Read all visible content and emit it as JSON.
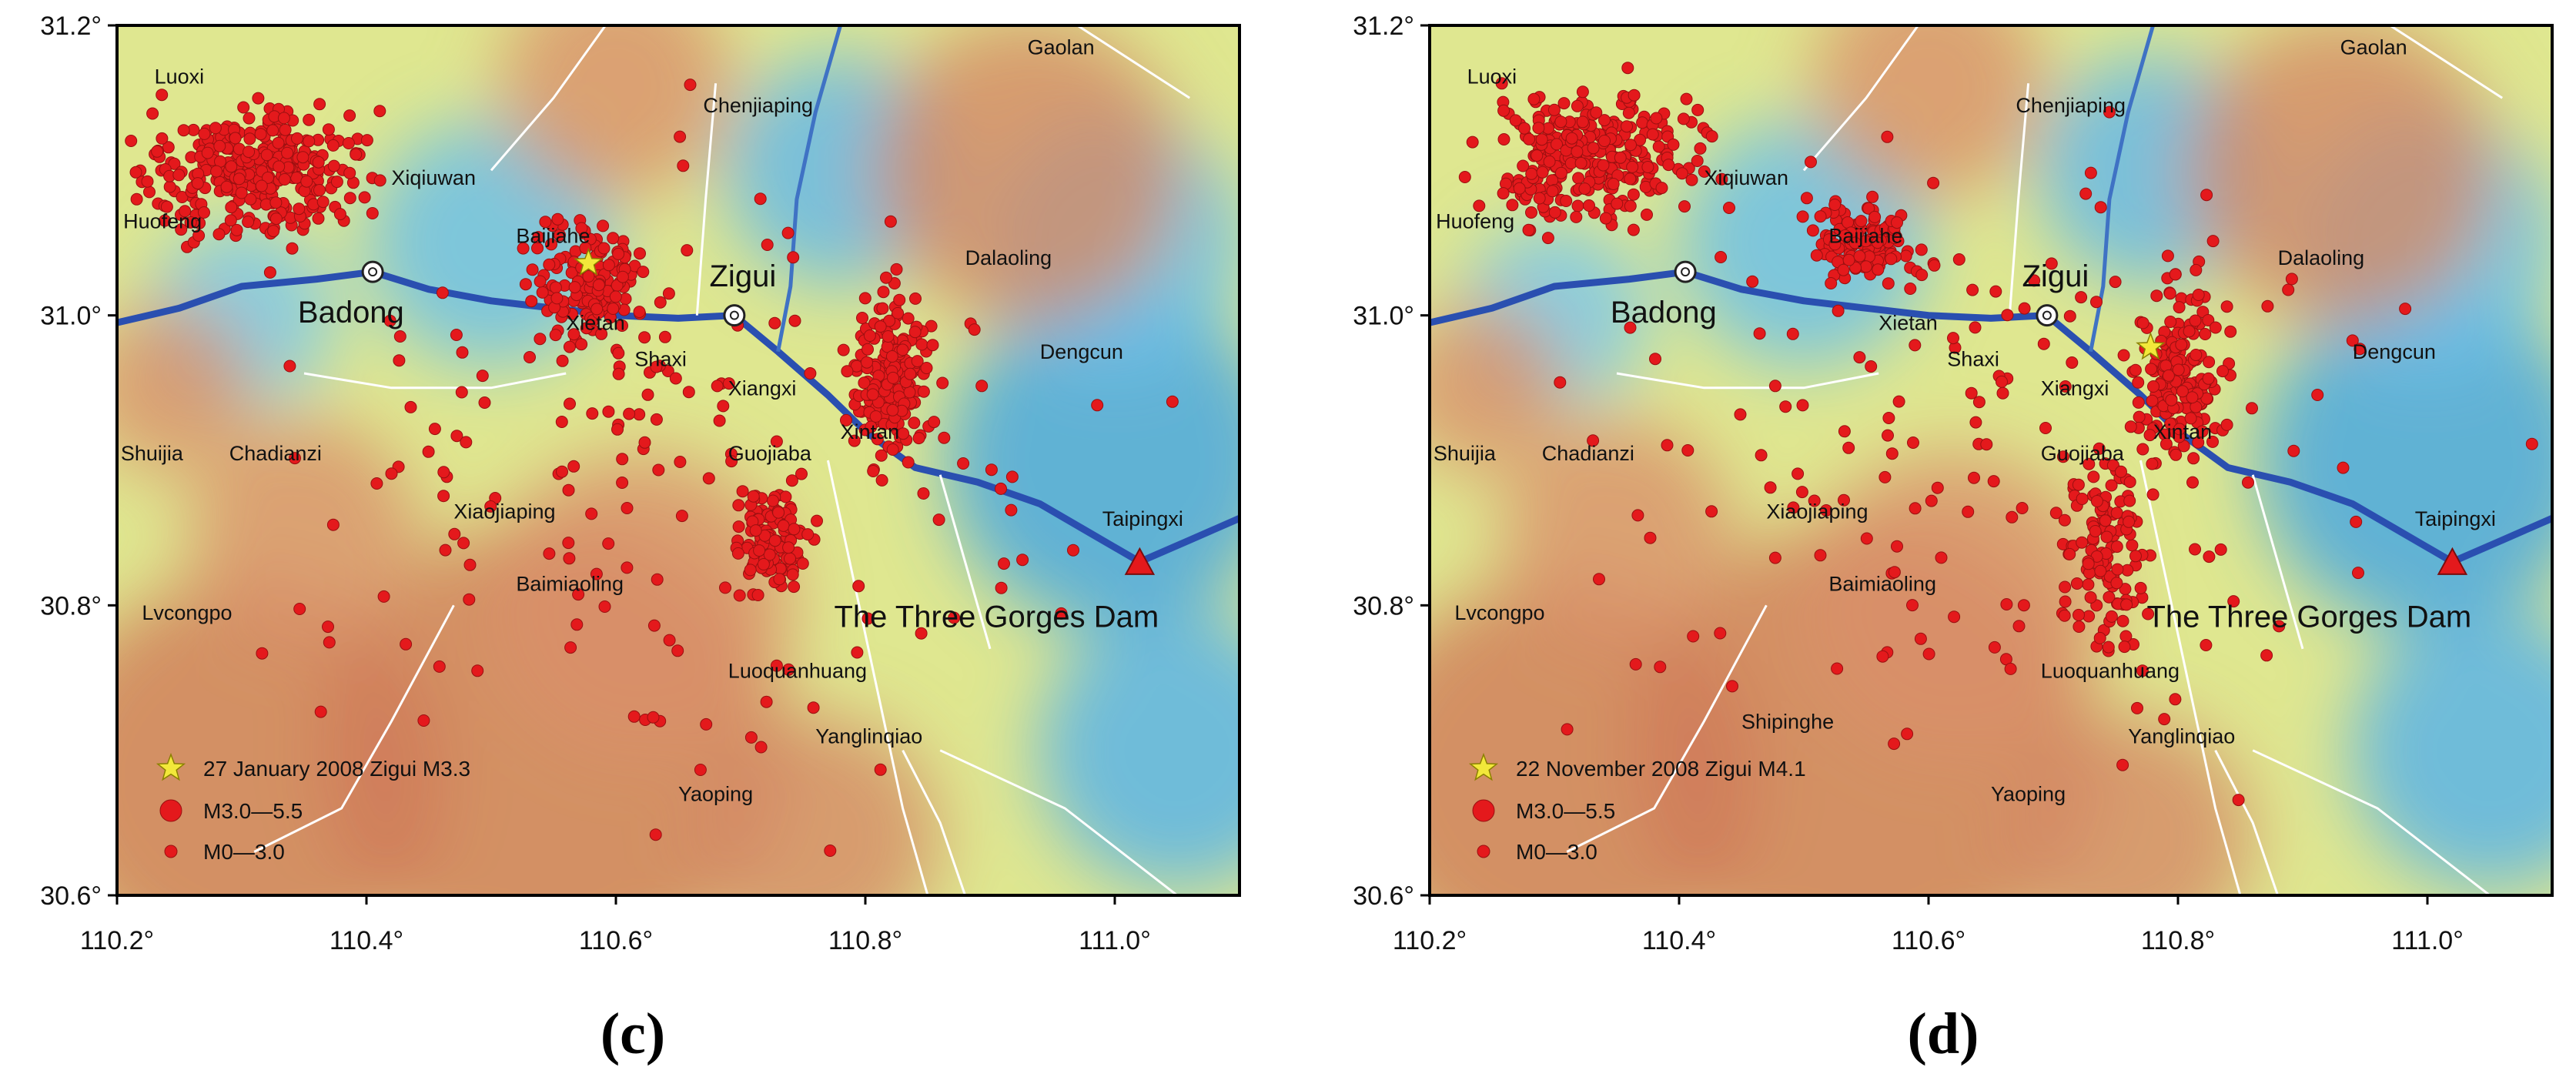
{
  "figure": {
    "panels": [
      {
        "id": "c",
        "caption": "(c)",
        "xticks": [
          "110.2°",
          "110.4°",
          "110.6°",
          "110.8°",
          "111.0°"
        ],
        "yticks": [
          "31.2°",
          "31.0°",
          "30.8°",
          "30.6°"
        ],
        "place_labels": [
          {
            "text": "Luoxi",
            "lon": 110.23,
            "lat": 31.16,
            "big": false
          },
          {
            "text": "Gaolan",
            "lon": 110.93,
            "lat": 31.18,
            "big": false
          },
          {
            "text": "Chenjiaping",
            "lon": 110.67,
            "lat": 31.14,
            "big": false
          },
          {
            "text": "Xiqiuwan",
            "lon": 110.42,
            "lat": 31.09,
            "big": false
          },
          {
            "text": "Huofeng",
            "lon": 110.205,
            "lat": 31.06,
            "big": false
          },
          {
            "text": "Baijiahe",
            "lon": 110.52,
            "lat": 31.05,
            "big": false
          },
          {
            "text": "Dalaoling",
            "lon": 110.88,
            "lat": 31.035,
            "big": false
          },
          {
            "text": "Badong",
            "lon": 110.345,
            "lat": 30.995,
            "big": true
          },
          {
            "text": "Zigui",
            "lon": 110.675,
            "lat": 31.02,
            "big": true
          },
          {
            "text": "Xietan",
            "lon": 110.56,
            "lat": 30.99,
            "big": false
          },
          {
            "text": "Shaxi",
            "lon": 110.615,
            "lat": 30.965,
            "big": false
          },
          {
            "text": "Dengcun",
            "lon": 110.94,
            "lat": 30.97,
            "big": false
          },
          {
            "text": "Xiangxi",
            "lon": 110.69,
            "lat": 30.945,
            "big": false
          },
          {
            "text": "Xintan",
            "lon": 110.78,
            "lat": 30.915,
            "big": false
          },
          {
            "text": "Shuijia",
            "lon": 110.203,
            "lat": 30.9,
            "big": false
          },
          {
            "text": "Chadianzi",
            "lon": 110.29,
            "lat": 30.9,
            "big": false
          },
          {
            "text": "Guojiaba",
            "lon": 110.69,
            "lat": 30.9,
            "big": false
          },
          {
            "text": "Xiaojiaping",
            "lon": 110.47,
            "lat": 30.86,
            "big": false
          },
          {
            "text": "Taipingxi",
            "lon": 110.99,
            "lat": 30.855,
            "big": false
          },
          {
            "text": "Baimiaoling",
            "lon": 110.52,
            "lat": 30.81,
            "big": false
          },
          {
            "text": "Lvcongpo",
            "lon": 110.22,
            "lat": 30.79,
            "big": false
          },
          {
            "text": "The Three Gorges Dam",
            "lon": 110.775,
            "lat": 30.785,
            "big": true
          },
          {
            "text": "Luoquanhuang",
            "lon": 110.69,
            "lat": 30.75,
            "big": false
          },
          {
            "text": "Yanglinqiao",
            "lon": 110.76,
            "lat": 30.705,
            "big": false
          },
          {
            "text": "Yaoping",
            "lon": 110.65,
            "lat": 30.665,
            "big": false
          }
        ],
        "legend": {
          "star": "27 January 2008 Zigui M3.3",
          "large": "M3.0—5.5",
          "small": "M0—3.0"
        },
        "mainshock": {
          "lon": 110.578,
          "lat": 31.036
        }
      },
      {
        "id": "d",
        "caption": "(d)",
        "xticks": [
          "110.2°",
          "110.4°",
          "110.6°",
          "110.8°",
          "111.0°"
        ],
        "yticks": [
          "31.2°",
          "31.0°",
          "30.8°",
          "30.6°"
        ],
        "place_labels": [
          {
            "text": "Luoxi",
            "lon": 110.23,
            "lat": 31.16,
            "big": false
          },
          {
            "text": "Gaolan",
            "lon": 110.93,
            "lat": 31.18,
            "big": false
          },
          {
            "text": "Chenjiaping",
            "lon": 110.67,
            "lat": 31.14,
            "big": false
          },
          {
            "text": "Xiqiuwan",
            "lon": 110.42,
            "lat": 31.09,
            "big": false
          },
          {
            "text": "Huofeng",
            "lon": 110.205,
            "lat": 31.06,
            "big": false
          },
          {
            "text": "Baijiahe",
            "lon": 110.52,
            "lat": 31.05,
            "big": false
          },
          {
            "text": "Dalaoling",
            "lon": 110.88,
            "lat": 31.035,
            "big": false
          },
          {
            "text": "Badong",
            "lon": 110.345,
            "lat": 30.995,
            "big": true
          },
          {
            "text": "Zigui",
            "lon": 110.675,
            "lat": 31.02,
            "big": true
          },
          {
            "text": "Xietan",
            "lon": 110.56,
            "lat": 30.99,
            "big": false
          },
          {
            "text": "Shaxi",
            "lon": 110.615,
            "lat": 30.965,
            "big": false
          },
          {
            "text": "Dengcun",
            "lon": 110.94,
            "lat": 30.97,
            "big": false
          },
          {
            "text": "Xiangxi",
            "lon": 110.69,
            "lat": 30.945,
            "big": false
          },
          {
            "text": "Xintan",
            "lon": 110.78,
            "lat": 30.915,
            "big": false
          },
          {
            "text": "Shuijia",
            "lon": 110.203,
            "lat": 30.9,
            "big": false
          },
          {
            "text": "Chadianzi",
            "lon": 110.29,
            "lat": 30.9,
            "big": false
          },
          {
            "text": "Guojiaba",
            "lon": 110.69,
            "lat": 30.9,
            "big": false
          },
          {
            "text": "Xiaojiaping",
            "lon": 110.47,
            "lat": 30.86,
            "big": false
          },
          {
            "text": "Taipingxi",
            "lon": 110.99,
            "lat": 30.855,
            "big": false
          },
          {
            "text": "Baimiaoling",
            "lon": 110.52,
            "lat": 30.81,
            "big": false
          },
          {
            "text": "Lvcongpo",
            "lon": 110.22,
            "lat": 30.79,
            "big": false
          },
          {
            "text": "The Three Gorges Dam",
            "lon": 110.775,
            "lat": 30.785,
            "big": true
          },
          {
            "text": "Luoquanhuang",
            "lon": 110.69,
            "lat": 30.75,
            "big": false
          },
          {
            "text": "Shipinghe",
            "lon": 110.45,
            "lat": 30.715,
            "big": false
          },
          {
            "text": "Yanglinqiao",
            "lon": 110.76,
            "lat": 30.705,
            "big": false
          },
          {
            "text": "Yaoping",
            "lon": 110.65,
            "lat": 30.665,
            "big": false
          }
        ],
        "legend": {
          "star": "22 November 2008 Zigui M4.1",
          "large": "M3.0—5.5",
          "small": "M0—3.0"
        },
        "mainshock": {
          "lon": 110.778,
          "lat": 30.978
        }
      }
    ],
    "extent": {
      "lon": [
        110.2,
        111.1
      ],
      "lat": [
        30.6,
        31.2
      ]
    },
    "towns": [
      {
        "name": "Badong",
        "lon": 110.405,
        "lat": 31.03
      },
      {
        "name": "Zigui",
        "lon": 110.695,
        "lat": 31.0
      }
    ],
    "dam": {
      "name": "The Three Gorges Dam",
      "lon": 111.02,
      "lat": 30.83
    },
    "colors": {
      "event": "#e4191c",
      "star": "#f2e83a",
      "dam": "#e4191c",
      "river": "#2a4fb0",
      "fault": "#ffffff"
    }
  }
}
